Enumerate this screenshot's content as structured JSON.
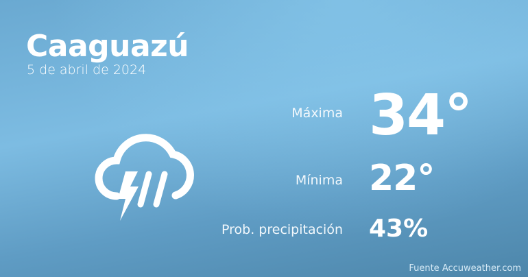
{
  "city": "Caaguazú",
  "date": "5 de abril de 2024",
  "weather_icon": "thunderstorm-rain-icon",
  "rows": [
    {
      "label": "Máxima",
      "value": "34°"
    },
    {
      "label": "Mínima",
      "value": "22°"
    },
    {
      "label": "Prob. precipitación",
      "value": "43%"
    }
  ],
  "source": "Fuente Accuweather.com",
  "colors": {
    "background_top": "#7dbce2",
    "background_bottom": "#4d86aa",
    "text": "#ffffff"
  }
}
